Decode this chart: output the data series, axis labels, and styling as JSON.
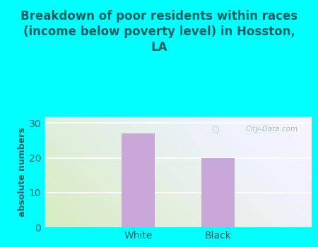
{
  "categories": [
    "White",
    "Black"
  ],
  "values": [
    27,
    20
  ],
  "bar_color": "#c8a8d8",
  "title": "Breakdown of poor residents within races\n(income below poverty level) in Hosston,\nLA",
  "ylabel": "absolute numbers",
  "ylim": [
    0,
    32
  ],
  "yticks": [
    0,
    10,
    20,
    30
  ],
  "background_outer": "#00ffff",
  "background_inner": "#f0f5e8",
  "title_color": "#006060",
  "axis_label_color": "#006060",
  "tick_label_color": "#006060",
  "watermark_text": "City-Data.com",
  "watermark_color": "#a0b8c0",
  "title_fontsize": 12,
  "ylabel_fontsize": 9,
  "tick_fontsize": 10,
  "grid_color": "#ffffff"
}
